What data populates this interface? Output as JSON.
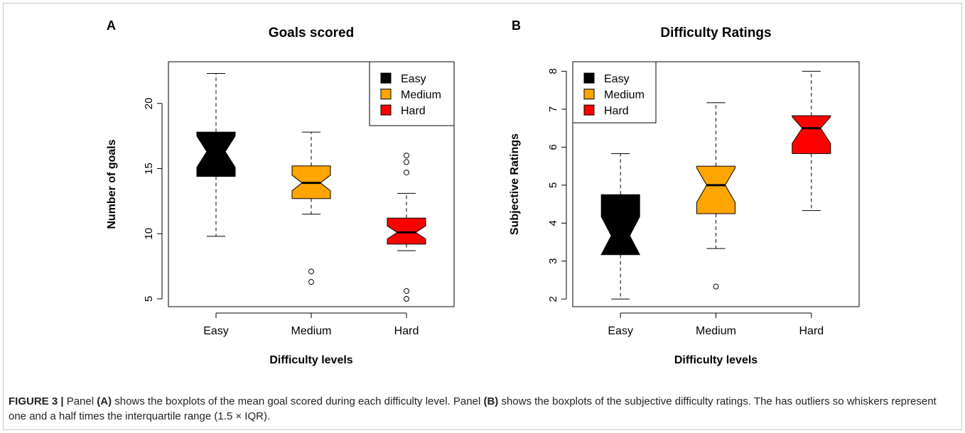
{
  "figure": {
    "caption_label": "FIGURE 3 |",
    "caption_parts": [
      {
        "text": " Panel ",
        "bold": false
      },
      {
        "text": "(A)",
        "bold": true
      },
      {
        "text": " shows the boxplots of the mean goal scored during each difficulty level. Panel ",
        "bold": false
      },
      {
        "text": "(B)",
        "bold": true
      },
      {
        "text": " shows the boxplots of the subjective difficulty ratings. The has outliers so whiskers represent one and a half times the interquartile range (1.5 × IQR).",
        "bold": false
      }
    ]
  },
  "chart_data": [
    {
      "panel_label": "A",
      "type": "box",
      "title": "Goals scored",
      "xlabel": "Difficulty levels",
      "ylabel": "Number of goals",
      "categories": [
        "Easy",
        "Medium",
        "Hard"
      ],
      "ylim": [
        4.4,
        23.2
      ],
      "yticks": [
        5,
        10,
        15,
        20
      ],
      "notched": true,
      "legend": {
        "position": "top-right",
        "entries": [
          {
            "label": "Easy",
            "color": "#000000"
          },
          {
            "label": "Medium",
            "color": "#FFA500"
          },
          {
            "label": "Hard",
            "color": "#FF0000"
          }
        ]
      },
      "boxes": [
        {
          "category": "Easy",
          "color": "#000000",
          "whisker_low": 9.8,
          "q1": 14.4,
          "median": 16.3,
          "q3": 17.8,
          "whisker_high": 22.3,
          "notch_low": 15.1,
          "notch_high": 17.5,
          "outliers": []
        },
        {
          "category": "Medium",
          "color": "#FFA500",
          "whisker_low": 11.5,
          "q1": 12.7,
          "median": 13.9,
          "q3": 15.2,
          "whisker_high": 17.8,
          "notch_low": 13.3,
          "notch_high": 14.5,
          "outliers": [
            7.1,
            6.3
          ]
        },
        {
          "category": "Hard",
          "color": "#FF0000",
          "whisker_low": 8.7,
          "q1": 9.2,
          "median": 10.1,
          "q3": 11.2,
          "whisker_high": 13.1,
          "notch_low": 9.6,
          "notch_high": 10.6,
          "outliers": [
            16.0,
            15.5,
            14.7,
            5.6,
            5.0
          ]
        }
      ]
    },
    {
      "panel_label": "B",
      "type": "box",
      "title": "Difficulty Ratings",
      "xlabel": "Difficulty levels",
      "ylabel": "Subjective Ratings",
      "categories": [
        "Easy",
        "Medium",
        "Hard"
      ],
      "ylim": [
        1.8,
        8.25
      ],
      "yticks": [
        2,
        3,
        4,
        5,
        6,
        7,
        8
      ],
      "notched": true,
      "legend": {
        "position": "top-left",
        "entries": [
          {
            "label": "Easy",
            "color": "#000000"
          },
          {
            "label": "Medium",
            "color": "#FFA500"
          },
          {
            "label": "Hard",
            "color": "#FF0000"
          }
        ]
      },
      "boxes": [
        {
          "category": "Easy",
          "color": "#000000",
          "whisker_low": 2.0,
          "q1": 3.17,
          "median": 3.67,
          "q3": 4.75,
          "whisker_high": 5.83,
          "notch_low": 3.17,
          "notch_high": 4.17,
          "outliers": []
        },
        {
          "category": "Medium",
          "color": "#FFA500",
          "whisker_low": 3.33,
          "q1": 4.25,
          "median": 5.0,
          "q3": 5.5,
          "whisker_high": 7.17,
          "notch_low": 4.55,
          "notch_high": 5.45,
          "outliers": [
            2.33
          ]
        },
        {
          "category": "Hard",
          "color": "#FF0000",
          "whisker_low": 4.33,
          "q1": 5.83,
          "median": 6.5,
          "q3": 6.83,
          "whisker_high": 8.0,
          "notch_low": 6.1,
          "notch_high": 6.8,
          "outliers": []
        }
      ]
    }
  ]
}
